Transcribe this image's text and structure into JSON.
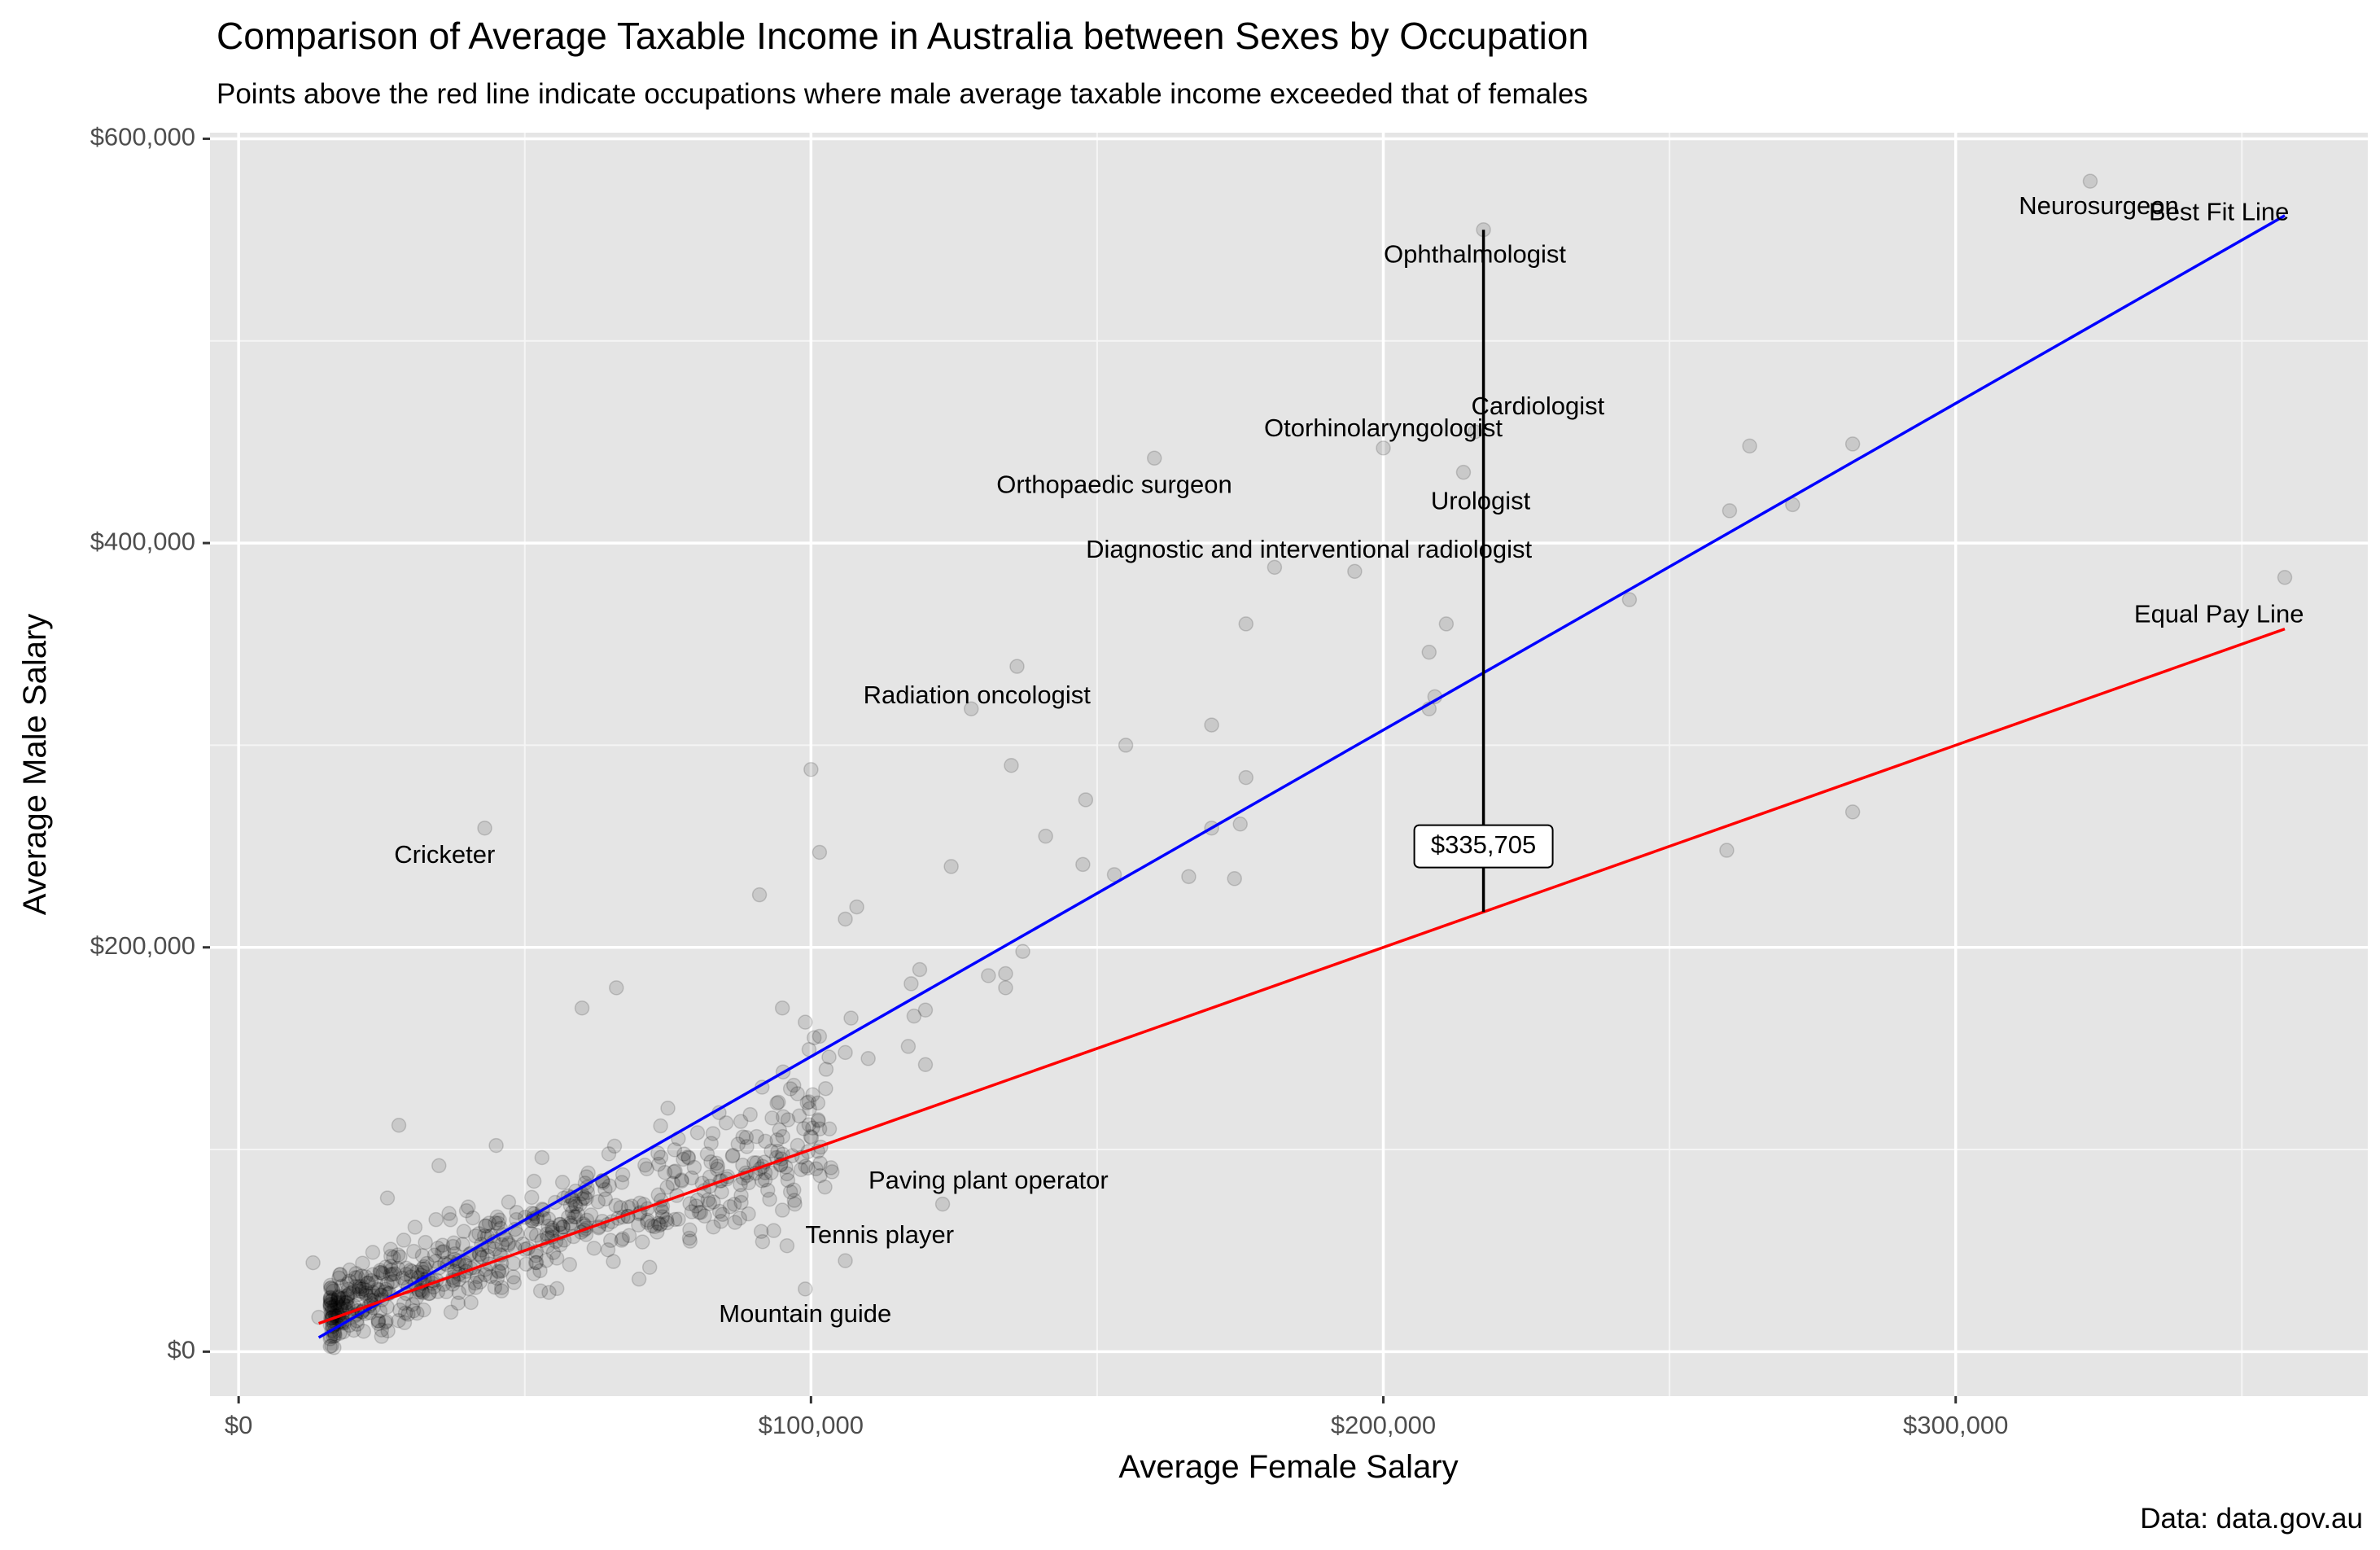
{
  "chart_data": {
    "type": "scatter",
    "title": "Comparison of Average Taxable Income in Australia between Sexes by Occupation",
    "subtitle": "Points above the red line indicate occupations where male average taxable income exceeded that of females",
    "xlabel": "Average Female Salary",
    "ylabel": "Average Male Salary",
    "caption": "Data: data.gov.au",
    "xlim": [
      -5000,
      372000
    ],
    "ylim": [
      -22000,
      603000
    ],
    "x_ticks": [
      {
        "value": 0,
        "label": "$0"
      },
      {
        "value": 100000,
        "label": "$100,000"
      },
      {
        "value": 200000,
        "label": "$200,000"
      },
      {
        "value": 300000,
        "label": "$300,000"
      }
    ],
    "y_ticks": [
      {
        "value": 0,
        "label": "$0"
      },
      {
        "value": 200000,
        "label": "$200,000"
      },
      {
        "value": 400000,
        "label": "$400,000"
      },
      {
        "value": 600000,
        "label": "$600,000"
      }
    ],
    "grid": true,
    "point_color": "#000000",
    "point_opacity": 0.12,
    "highlighted_points": [
      {
        "x": 323500,
        "y": 579000
      },
      {
        "x": 217500,
        "y": 555000
      },
      {
        "x": 216000,
        "y": 455000
      },
      {
        "x": 200000,
        "y": 447000
      },
      {
        "x": 160000,
        "y": 442000
      },
      {
        "x": 214000,
        "y": 435000
      },
      {
        "x": 264000,
        "y": 448000
      },
      {
        "x": 282000,
        "y": 449000
      },
      {
        "x": 260500,
        "y": 416000
      },
      {
        "x": 271500,
        "y": 419000
      },
      {
        "x": 357500,
        "y": 383000
      },
      {
        "x": 181000,
        "y": 388000
      },
      {
        "x": 195000,
        "y": 386000
      },
      {
        "x": 243000,
        "y": 372000
      },
      {
        "x": 176000,
        "y": 360000
      },
      {
        "x": 211000,
        "y": 360000
      },
      {
        "x": 208000,
        "y": 346000
      },
      {
        "x": 136000,
        "y": 339000
      },
      {
        "x": 209000,
        "y": 324000
      },
      {
        "x": 128000,
        "y": 318000
      },
      {
        "x": 208000,
        "y": 318000
      },
      {
        "x": 170000,
        "y": 310000
      },
      {
        "x": 155000,
        "y": 300000
      },
      {
        "x": 135000,
        "y": 290000
      },
      {
        "x": 100000,
        "y": 288000
      },
      {
        "x": 176000,
        "y": 284000
      },
      {
        "x": 148000,
        "y": 273000
      },
      {
        "x": 175000,
        "y": 261000
      },
      {
        "x": 170000,
        "y": 259000
      },
      {
        "x": 43000,
        "y": 259000
      },
      {
        "x": 141000,
        "y": 255000
      },
      {
        "x": 101500,
        "y": 247000
      },
      {
        "x": 260000,
        "y": 248000
      },
      {
        "x": 282000,
        "y": 267000
      },
      {
        "x": 124500,
        "y": 240000
      },
      {
        "x": 147500,
        "y": 241000
      },
      {
        "x": 153000,
        "y": 236000
      },
      {
        "x": 166000,
        "y": 235000
      },
      {
        "x": 174000,
        "y": 234000
      },
      {
        "x": 91000,
        "y": 226000
      },
      {
        "x": 108000,
        "y": 220000
      },
      {
        "x": 106000,
        "y": 214000
      },
      {
        "x": 137000,
        "y": 198000
      },
      {
        "x": 119000,
        "y": 189000
      },
      {
        "x": 131000,
        "y": 186000
      },
      {
        "x": 134000,
        "y": 187000
      },
      {
        "x": 134000,
        "y": 180000
      },
      {
        "x": 117500,
        "y": 182000
      },
      {
        "x": 60000,
        "y": 170000
      },
      {
        "x": 66000,
        "y": 180000
      },
      {
        "x": 95000,
        "y": 170000
      },
      {
        "x": 118000,
        "y": 166000
      },
      {
        "x": 120000,
        "y": 169000
      },
      {
        "x": 107000,
        "y": 165000
      },
      {
        "x": 99000,
        "y": 163000
      },
      {
        "x": 101500,
        "y": 156000
      },
      {
        "x": 117000,
        "y": 151000
      },
      {
        "x": 120000,
        "y": 142000
      },
      {
        "x": 110000,
        "y": 145000
      },
      {
        "x": 106000,
        "y": 148000
      },
      {
        "x": 123000,
        "y": 73000
      },
      {
        "x": 106000,
        "y": 45000
      },
      {
        "x": 99000,
        "y": 31000
      },
      {
        "x": 95000,
        "y": 70000
      },
      {
        "x": 97000,
        "y": 80000
      },
      {
        "x": 92000,
        "y": 85000
      },
      {
        "x": 28000,
        "y": 112000
      },
      {
        "x": 13000,
        "y": 44000
      },
      {
        "x": 14000,
        "y": 17000
      },
      {
        "x": 26000,
        "y": 76000
      },
      {
        "x": 35000,
        "y": 92000
      },
      {
        "x": 45000,
        "y": 102000
      },
      {
        "x": 53000,
        "y": 96000
      },
      {
        "x": 46000,
        "y": 40000
      },
      {
        "x": 55000,
        "y": 49000
      },
      {
        "x": 65000,
        "y": 55000
      },
      {
        "x": 48000,
        "y": 37000
      }
    ],
    "cluster": {
      "n": 620,
      "x_min": 16000,
      "x_max": 104000,
      "intercept": 2500,
      "slope": 1.05,
      "noise": 9000
    },
    "series": [
      {
        "name": "Best Fit Line",
        "color": "#0000ff",
        "x": [
          14000,
          357500
        ],
        "y": [
          7000,
          562000
        ]
      },
      {
        "name": "Equal Pay Line",
        "color": "#ff0000",
        "x": [
          14000,
          357500
        ],
        "y": [
          14000,
          357500
        ]
      }
    ],
    "annotations": [
      {
        "text": "Neurosurgeon",
        "x": 325000,
        "y": 566000
      },
      {
        "text": "Best Fit Line",
        "x": 346000,
        "y": 563000
      },
      {
        "text": "Ophthalmologist",
        "x": 216000,
        "y": 542000
      },
      {
        "text": "Cardiologist",
        "x": 227000,
        "y": 467000
      },
      {
        "text": "Otorhinolaryngologist",
        "x": 200000,
        "y": 456000
      },
      {
        "text": "Orthopaedic surgeon",
        "x": 153000,
        "y": 428000
      },
      {
        "text": "Urologist",
        "x": 217000,
        "y": 420000
      },
      {
        "text": "Diagnostic and interventional radiologist",
        "x": 187000,
        "y": 396000
      },
      {
        "text": "Equal Pay Line",
        "x": 346000,
        "y": 364000
      },
      {
        "text": "Radiation oncologist",
        "x": 129000,
        "y": 324000
      },
      {
        "text": "Cricketer",
        "x": 36000,
        "y": 245000
      },
      {
        "text": "Paving plant operator",
        "x": 131000,
        "y": 84000
      },
      {
        "text": "Tennis player",
        "x": 112000,
        "y": 57000
      },
      {
        "text": "Mountain guide",
        "x": 99000,
        "y": 18000
      }
    ],
    "difference_segment": {
      "x": 217500,
      "y_from": 217500,
      "y_to": 555000
    },
    "difference_label": {
      "text": "$335,705",
      "x": 217500,
      "y": 250000
    }
  }
}
